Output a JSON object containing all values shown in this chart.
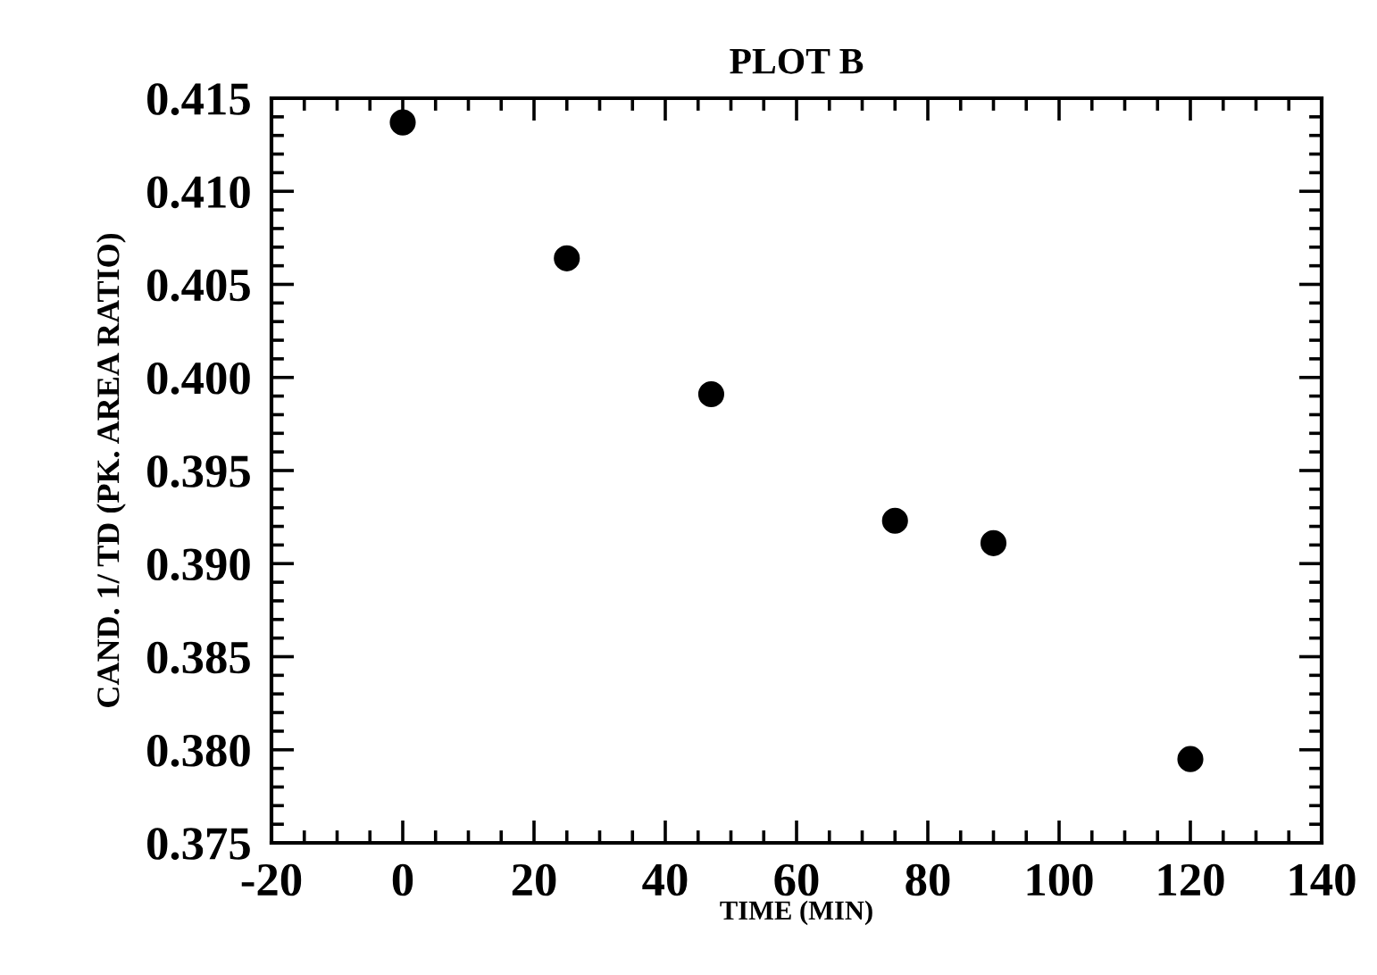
{
  "chart_data": {
    "type": "scatter",
    "title": "PLOT B",
    "xlabel": "TIME (MIN)",
    "ylabel": "CAND. 1/ TD (PK. AREA RATIO)",
    "x": [
      0,
      25,
      47,
      75,
      90,
      120
    ],
    "values": [
      0.4137,
      0.4064,
      0.3991,
      0.3923,
      0.3911,
      0.3795
    ],
    "color": "#000000",
    "marker": "circle",
    "grid": false,
    "legend": false,
    "xlim": [
      -20,
      140
    ],
    "xticks": [
      -20,
      0,
      20,
      40,
      60,
      80,
      100,
      120,
      140
    ],
    "ylim": [
      0.375,
      0.415
    ],
    "yticks": [
      {
        "value": 0.375,
        "label": "0.375"
      },
      {
        "value": 0.38,
        "label": "0.380"
      },
      {
        "value": 0.385,
        "label": "0.385"
      },
      {
        "value": 0.39,
        "label": "0.390"
      },
      {
        "value": 0.395,
        "label": "0.395"
      },
      {
        "value": 0.4,
        "label": "0.400"
      },
      {
        "value": 0.405,
        "label": "0.405"
      },
      {
        "value": 0.41,
        "label": "0.410"
      },
      {
        "value": 0.415,
        "label": "0.415"
      }
    ]
  }
}
